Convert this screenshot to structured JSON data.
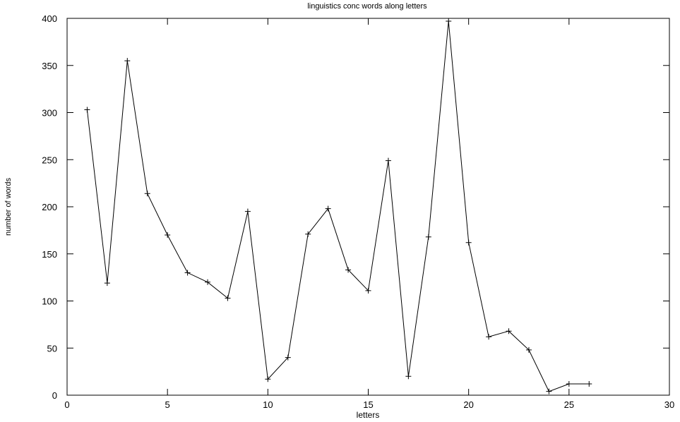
{
  "chart_data": {
    "type": "line",
    "title": "linguistics conc words along letters",
    "xlabel": "letters",
    "ylabel": "number of words",
    "xlim": [
      0,
      30
    ],
    "ylim": [
      0,
      400
    ],
    "xticks": [
      0,
      5,
      10,
      15,
      20,
      25,
      30
    ],
    "yticks": [
      0,
      50,
      100,
      150,
      200,
      250,
      300,
      350,
      400
    ],
    "grid": false,
    "legend": false,
    "marker": "plus",
    "line_color": "#000000",
    "x": [
      1,
      2,
      3,
      4,
      5,
      6,
      7,
      8,
      9,
      10,
      11,
      12,
      13,
      14,
      15,
      16,
      17,
      18,
      19,
      20,
      21,
      22,
      23,
      24,
      25,
      26
    ],
    "values": [
      303,
      119,
      355,
      214,
      170,
      130,
      120,
      103,
      195,
      17,
      40,
      171,
      198,
      133,
      111,
      249,
      20,
      168,
      397,
      162,
      62,
      68,
      48,
      4,
      12,
      12
    ]
  }
}
